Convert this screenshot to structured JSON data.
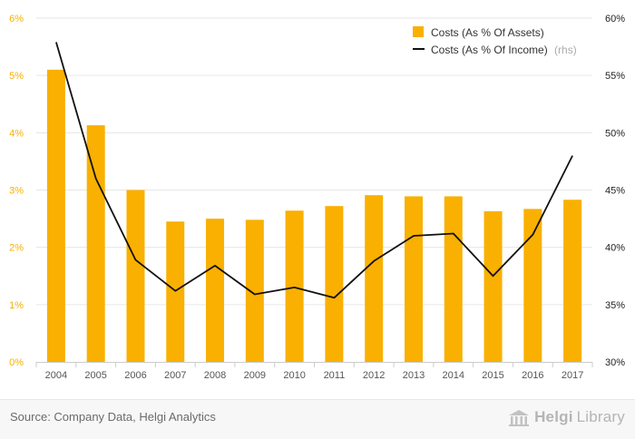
{
  "chart_data": {
    "type": "bar",
    "categories": [
      "2004",
      "2005",
      "2006",
      "2007",
      "2008",
      "2009",
      "2010",
      "2011",
      "2012",
      "2013",
      "2014",
      "2015",
      "2016",
      "2017"
    ],
    "series": [
      {
        "name": "Costs (As % Of Assets)",
        "type": "bar",
        "axis": "left",
        "color": "#f9b000",
        "values": [
          5.1,
          4.13,
          3.0,
          2.45,
          2.5,
          2.48,
          2.64,
          2.72,
          2.91,
          2.89,
          2.89,
          2.63,
          2.67,
          2.83
        ]
      },
      {
        "name": "Costs (As % Of Income)",
        "name_suffix": "(rhs)",
        "type": "line",
        "axis": "right",
        "color": "#111111",
        "values": [
          57.9,
          46.0,
          38.9,
          36.2,
          38.4,
          35.9,
          36.5,
          35.6,
          38.8,
          41.0,
          41.2,
          37.5,
          41.1,
          48.0
        ]
      }
    ],
    "y_left": {
      "min": 0,
      "max": 6,
      "ticks": [
        "0%",
        "1%",
        "2%",
        "3%",
        "4%",
        "5%",
        "6%"
      ],
      "color": "#f9b000"
    },
    "y_right": {
      "min": 30,
      "max": 60,
      "ticks": [
        "30%",
        "35%",
        "40%",
        "45%",
        "50%",
        "55%",
        "60%"
      ],
      "color": "#222222"
    },
    "grid": true,
    "legend_position": "top-right"
  },
  "footer": {
    "source": "Source: Company Data, Helgi Analytics",
    "logo_part1": "Helgi",
    "logo_part2": "Library"
  }
}
